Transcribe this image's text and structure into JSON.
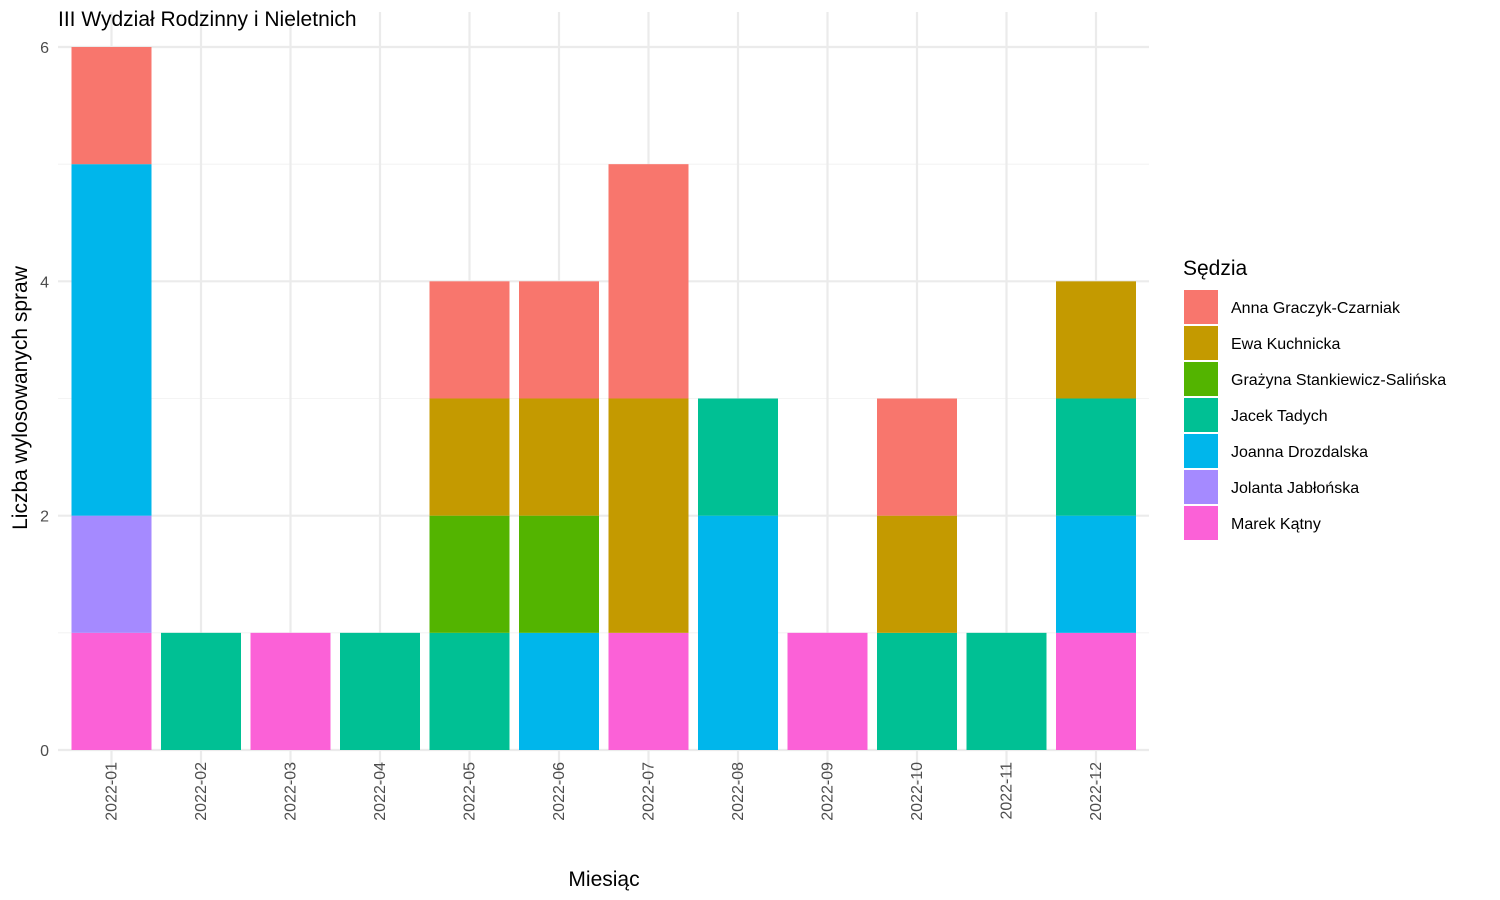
{
  "chart_data": {
    "type": "bar",
    "stacked": true,
    "title": "III Wydział Rodzinny i Nieletnich",
    "xlabel": "Miesiąc",
    "ylabel": "Liczba wylosowanych spraw",
    "ylim": [
      0,
      6
    ],
    "yticks": [
      0,
      2,
      4,
      6
    ],
    "grid": true,
    "legend_title": "Sędzia",
    "legend_position": "right",
    "categories": [
      "2022-01",
      "2022-02",
      "2022-03",
      "2022-04",
      "2022-05",
      "2022-06",
      "2022-07",
      "2022-08",
      "2022-09",
      "2022-10",
      "2022-11",
      "2022-12"
    ],
    "series": [
      {
        "name": "Anna Graczyk-Czarniak",
        "color": "#F8766D",
        "values": [
          1,
          0,
          0,
          0,
          1,
          1,
          2,
          0,
          0,
          1,
          0,
          0
        ]
      },
      {
        "name": "Ewa Kuchnicka",
        "color": "#C49A00",
        "values": [
          0,
          0,
          0,
          0,
          1,
          1,
          2,
          0,
          0,
          1,
          0,
          1
        ]
      },
      {
        "name": "Grażyna Stankiewicz-Salińska",
        "color": "#53B400",
        "values": [
          0,
          0,
          0,
          0,
          1,
          1,
          0,
          0,
          0,
          0,
          0,
          0
        ]
      },
      {
        "name": "Jacek Tadych",
        "color": "#00C094",
        "values": [
          0,
          1,
          0,
          1,
          1,
          0,
          0,
          1,
          0,
          1,
          1,
          1
        ]
      },
      {
        "name": "Joanna Drozdalska",
        "color": "#00B6EB",
        "values": [
          3,
          0,
          0,
          0,
          0,
          1,
          0,
          2,
          0,
          0,
          0,
          1
        ]
      },
      {
        "name": "Jolanta Jabłońska",
        "color": "#A58AFF",
        "values": [
          1,
          0,
          0,
          0,
          0,
          0,
          0,
          0,
          0,
          0,
          0,
          0
        ]
      },
      {
        "name": "Marek Kątny",
        "color": "#FB61D7",
        "values": [
          1,
          0,
          1,
          0,
          0,
          0,
          1,
          0,
          1,
          0,
          0,
          1
        ]
      }
    ]
  }
}
